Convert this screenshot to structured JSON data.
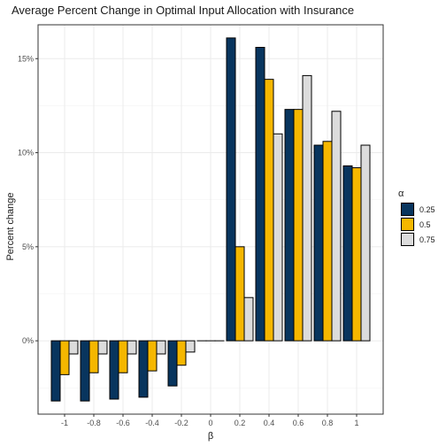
{
  "chart_data": {
    "type": "bar",
    "title": "Average Percent Change in Optimal Input Allocation with Insurance",
    "xlabel": "β",
    "ylabel": "Percent change",
    "categories": [
      "-1",
      "-0.8",
      "-0.6",
      "-0.4",
      "-0.2",
      "0",
      "0.2",
      "0.4",
      "0.6",
      "0.8",
      "1"
    ],
    "legend_title": "α",
    "legend_position": "right",
    "grid": true,
    "ylim": [
      -0.039,
      0.168
    ],
    "y_ticks": [
      0,
      0.05,
      0.1,
      0.15
    ],
    "y_tick_labels": [
      "0%",
      "5%",
      "10%",
      "15%"
    ],
    "series": [
      {
        "name": "0.25",
        "color": "#08355e",
        "values": [
          -0.032,
          -0.032,
          -0.031,
          -0.03,
          -0.024,
          0.0,
          0.161,
          0.156,
          0.123,
          0.104,
          0.093
        ]
      },
      {
        "name": "0.5",
        "color": "#f5b700",
        "values": [
          -0.018,
          -0.017,
          -0.017,
          -0.016,
          -0.013,
          0.0,
          0.05,
          0.139,
          0.123,
          0.106,
          0.092
        ]
      },
      {
        "name": "0.75",
        "color": "#dcdcdc",
        "values": [
          -0.007,
          -0.007,
          -0.007,
          -0.007,
          -0.006,
          0.0,
          0.023,
          0.11,
          0.141,
          0.122,
          0.104
        ]
      }
    ]
  }
}
